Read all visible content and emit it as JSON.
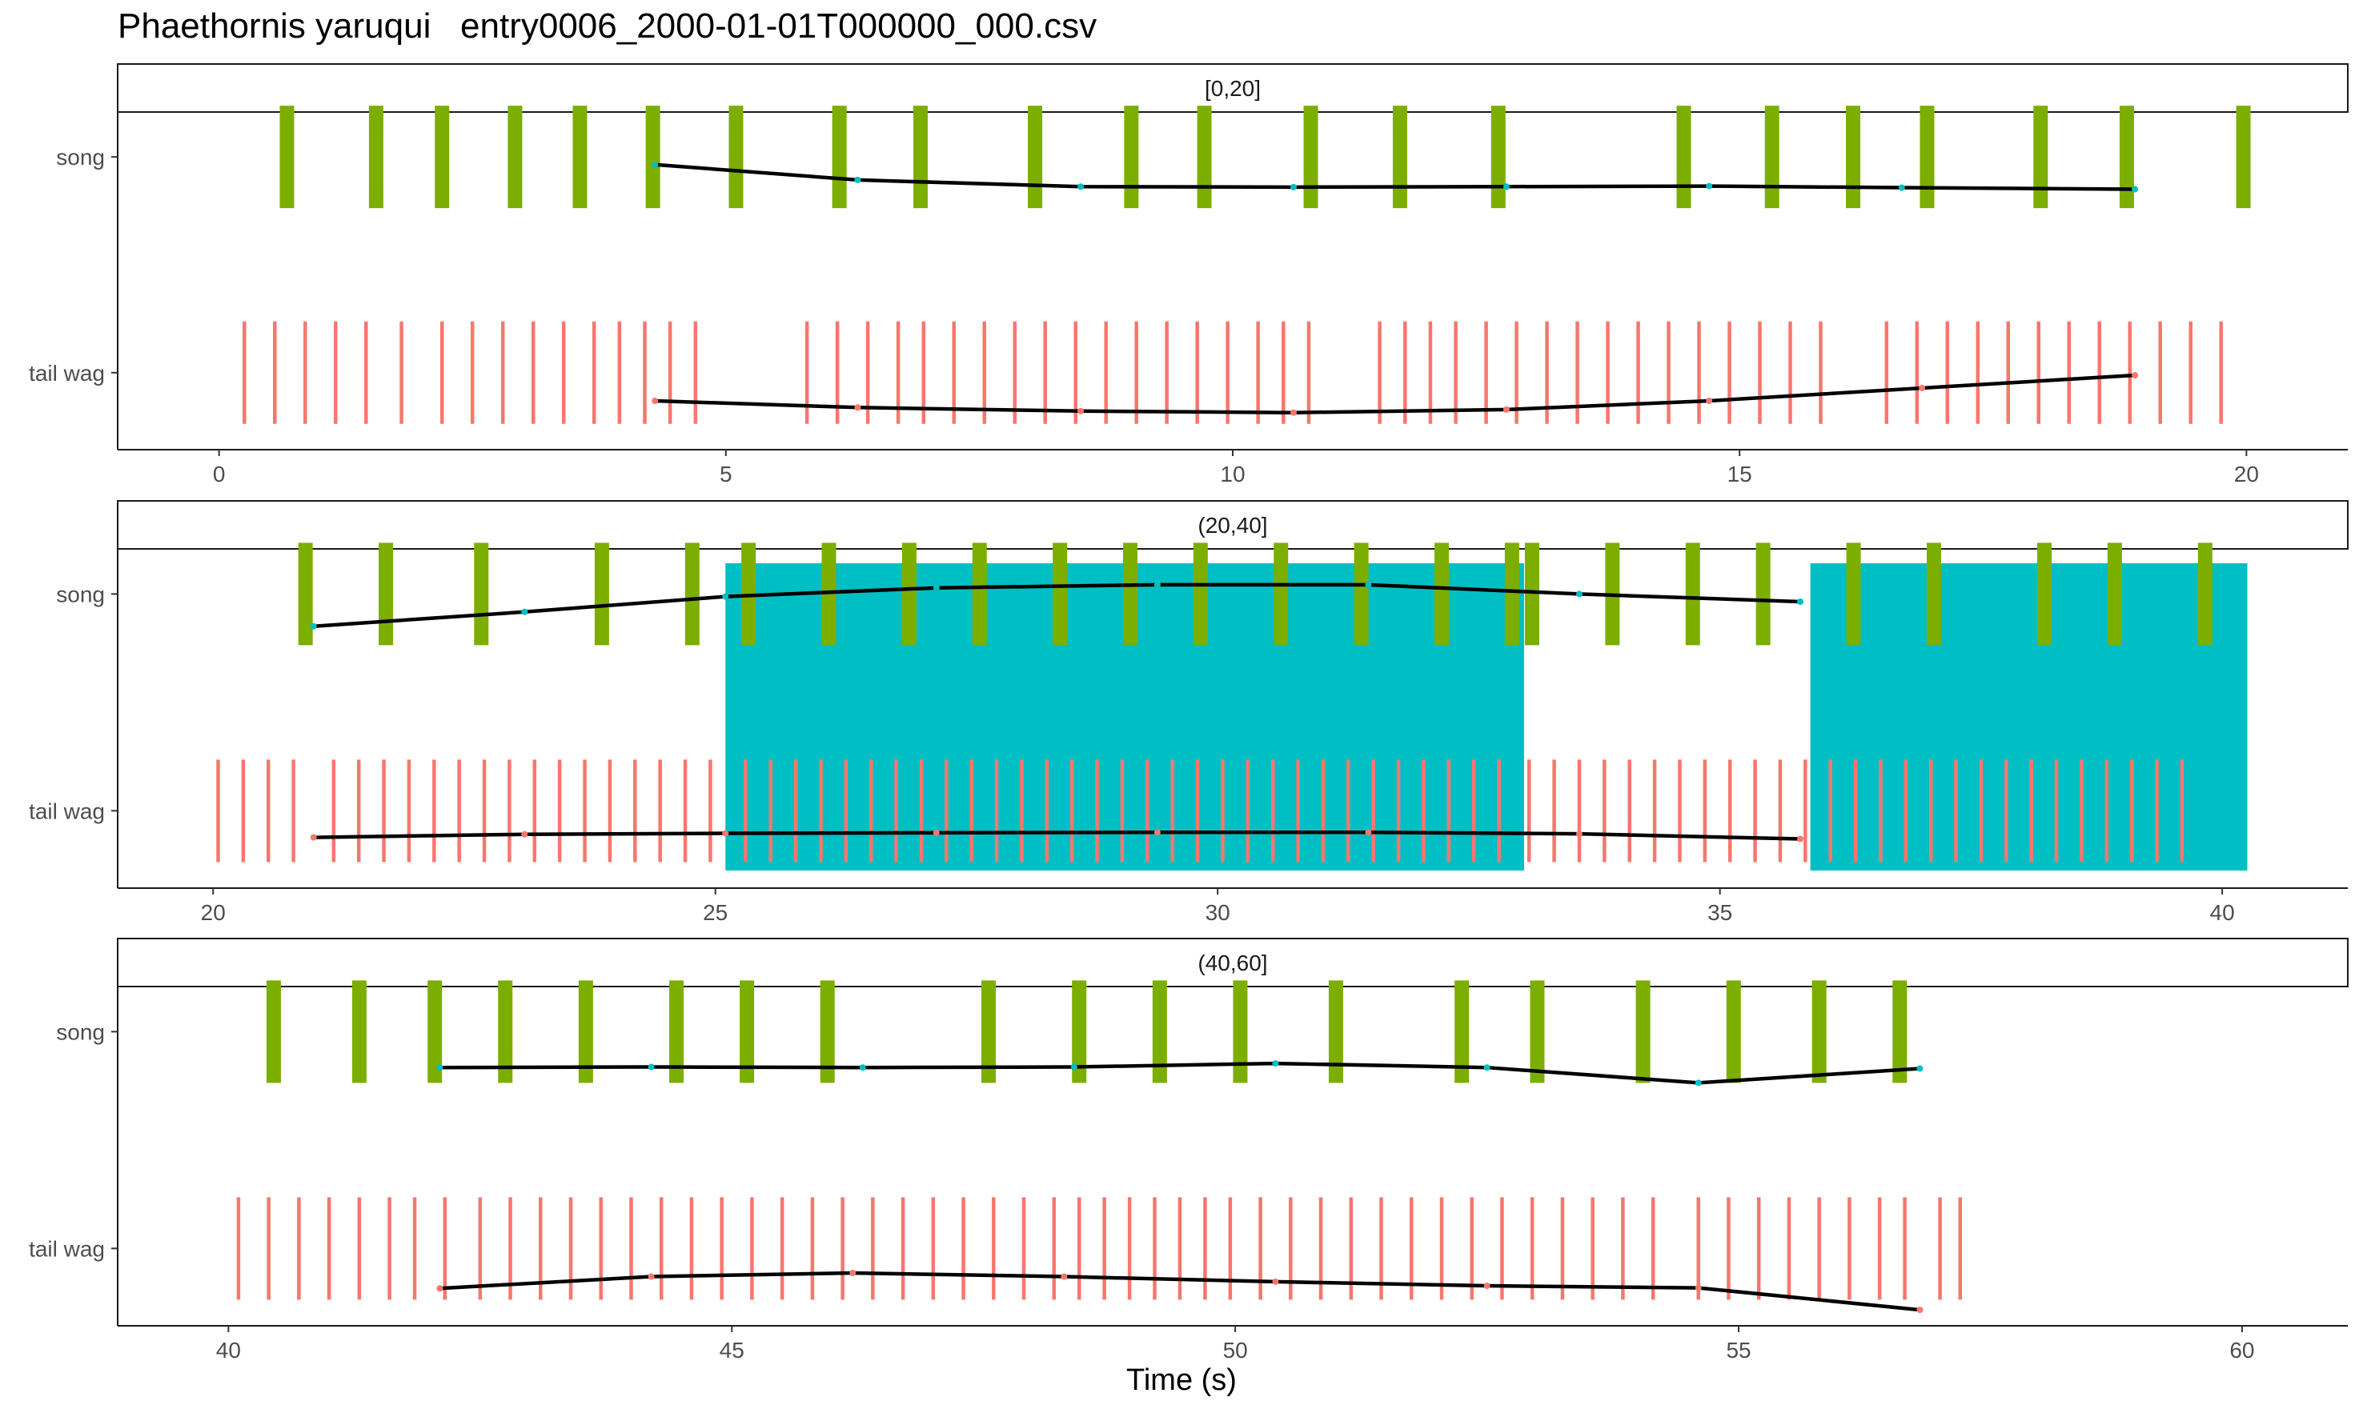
{
  "title": "Phaethornis yaruqui   entry0006_2000-01-01T000000_000.csv",
  "chart_data": {
    "type": "event raster (faceted)",
    "xlabel": "Time (s)",
    "y_categories": [
      "song",
      "tail wag"
    ],
    "colors": {
      "song": "#7cae00",
      "tail wag": "#f8766d",
      "highlight": "#00bfc4",
      "trend": "#000000"
    },
    "facets": [
      {
        "label": "[0,20]",
        "xlim": [
          -1,
          21
        ],
        "ticks": [
          0,
          5,
          10,
          15,
          20
        ],
        "highlights": [],
        "song": [
          0.67,
          1.55,
          2.2,
          2.92,
          3.56,
          4.28,
          5.1,
          6.12,
          6.92,
          8.05,
          9.0,
          9.72,
          10.77,
          11.65,
          12.62,
          14.45,
          15.32,
          16.12,
          16.85,
          17.97,
          18.82,
          19.97
        ],
        "tail_wag": [
          0.25,
          0.55,
          0.85,
          1.15,
          1.45,
          1.8,
          2.2,
          2.5,
          2.8,
          3.1,
          3.4,
          3.7,
          3.95,
          4.2,
          4.45,
          4.7,
          5.8,
          6.1,
          6.4,
          6.7,
          6.95,
          7.25,
          7.55,
          7.85,
          8.15,
          8.45,
          8.75,
          9.05,
          9.35,
          9.65,
          9.95,
          10.25,
          10.5,
          10.75,
          11.45,
          11.7,
          11.95,
          12.2,
          12.5,
          12.8,
          13.1,
          13.4,
          13.7,
          14.0,
          14.3,
          14.6,
          14.9,
          15.2,
          15.5,
          15.8,
          16.45,
          16.75,
          17.05,
          17.35,
          17.65,
          17.95,
          18.25,
          18.55,
          18.85,
          19.15,
          19.45,
          19.75
        ],
        "song_trend": [
          [
            4.3,
            0.85
          ],
          [
            6.3,
            0.55
          ],
          [
            8.5,
            0.42
          ],
          [
            10.6,
            0.41
          ],
          [
            12.7,
            0.42
          ],
          [
            14.7,
            0.43
          ],
          [
            16.6,
            0.4
          ],
          [
            18.9,
            0.37
          ]
        ],
        "tail_trend": [
          [
            4.3,
            0.45
          ],
          [
            6.3,
            0.32
          ],
          [
            8.5,
            0.25
          ],
          [
            10.6,
            0.22
          ],
          [
            12.7,
            0.28
          ],
          [
            14.7,
            0.45
          ],
          [
            16.8,
            0.7
          ],
          [
            18.9,
            0.95
          ]
        ]
      },
      {
        "label": "(20,40]",
        "xlim": [
          19.05,
          41.25
        ],
        "ticks": [
          20,
          25,
          30,
          35,
          40
        ],
        "highlights": [
          [
            25.1,
            33.05
          ],
          [
            35.9,
            40.25
          ]
        ],
        "song": [
          20.92,
          21.72,
          22.67,
          23.87,
          24.77,
          25.33,
          26.13,
          26.93,
          27.63,
          28.43,
          29.13,
          29.83,
          30.63,
          31.43,
          32.23,
          32.93,
          33.13,
          33.93,
          34.73,
          35.43,
          36.33,
          37.13,
          38.23,
          38.93,
          39.83
        ],
        "tail_wag": [
          20.05,
          20.3,
          20.55,
          20.8,
          21.2,
          21.45,
          21.7,
          21.95,
          22.2,
          22.45,
          22.7,
          22.95,
          23.2,
          23.45,
          23.7,
          23.95,
          24.2,
          24.45,
          24.7,
          24.95,
          25.3,
          25.55,
          25.8,
          26.05,
          26.3,
          26.55,
          26.8,
          27.05,
          27.3,
          27.55,
          27.8,
          28.05,
          28.3,
          28.55,
          28.8,
          29.05,
          29.3,
          29.55,
          29.8,
          30.05,
          30.3,
          30.55,
          30.8,
          31.05,
          31.3,
          31.55,
          31.8,
          32.05,
          32.3,
          32.55,
          32.8,
          33.1,
          33.35,
          33.6,
          33.85,
          34.1,
          34.35,
          34.6,
          34.85,
          35.1,
          35.35,
          35.6,
          35.85,
          36.1,
          36.35,
          36.6,
          36.85,
          37.1,
          37.35,
          37.6,
          37.85,
          38.1,
          38.35,
          38.6,
          38.85,
          39.1,
          39.35,
          39.6
        ],
        "song_trend": [
          [
            21.0,
            0.37
          ],
          [
            23.1,
            0.65
          ],
          [
            25.1,
            0.95
          ],
          [
            27.2,
            1.12
          ],
          [
            29.4,
            1.18
          ],
          [
            31.5,
            1.18
          ],
          [
            33.6,
            1.0
          ],
          [
            35.8,
            0.85
          ]
        ],
        "tail_trend": [
          [
            21.0,
            0.48
          ],
          [
            23.1,
            0.54
          ],
          [
            25.1,
            0.56
          ],
          [
            27.2,
            0.57
          ],
          [
            29.4,
            0.58
          ],
          [
            31.5,
            0.58
          ],
          [
            33.6,
            0.55
          ],
          [
            35.8,
            0.45
          ]
        ]
      },
      {
        "label": "(40,60]",
        "xlim": [
          38.9,
          61.05
        ],
        "ticks": [
          40,
          45,
          50,
          55,
          60
        ],
        "highlights": [],
        "song": [
          40.45,
          41.3,
          42.05,
          42.75,
          43.55,
          44.45,
          45.15,
          45.95,
          47.55,
          48.45,
          49.25,
          50.05,
          51.0,
          52.25,
          53.0,
          54.05,
          54.95,
          55.8,
          56.6
        ],
        "tail_wag": [
          40.1,
          40.4,
          40.7,
          41.0,
          41.3,
          41.6,
          41.85,
          42.15,
          42.5,
          42.8,
          43.1,
          43.4,
          43.7,
          44.0,
          44.3,
          44.6,
          44.9,
          45.2,
          45.5,
          45.8,
          46.1,
          46.4,
          46.7,
          47.0,
          47.3,
          47.6,
          47.9,
          48.2,
          48.45,
          48.7,
          48.95,
          49.2,
          49.45,
          49.7,
          49.95,
          50.25,
          50.55,
          50.85,
          51.15,
          51.45,
          51.75,
          52.05,
          52.35,
          52.65,
          52.95,
          53.25,
          53.55,
          53.85,
          54.15,
          54.6,
          54.9,
          55.2,
          55.5,
          55.8,
          56.1,
          56.4,
          56.65,
          57.0,
          57.2
        ],
        "song_trend": [
          [
            42.1,
            0.3
          ],
          [
            44.2,
            0.31
          ],
          [
            46.3,
            0.3
          ],
          [
            48.4,
            0.31
          ],
          [
            50.4,
            0.38
          ],
          [
            52.5,
            0.3
          ],
          [
            54.6,
            0.0
          ],
          [
            56.8,
            0.28
          ]
        ],
        "tail_trend": [
          [
            42.1,
            0.22
          ],
          [
            44.2,
            0.45
          ],
          [
            46.2,
            0.52
          ],
          [
            48.3,
            0.45
          ],
          [
            50.4,
            0.35
          ],
          [
            52.5,
            0.27
          ],
          [
            54.6,
            0.23
          ],
          [
            56.8,
            -0.2
          ]
        ]
      }
    ]
  }
}
